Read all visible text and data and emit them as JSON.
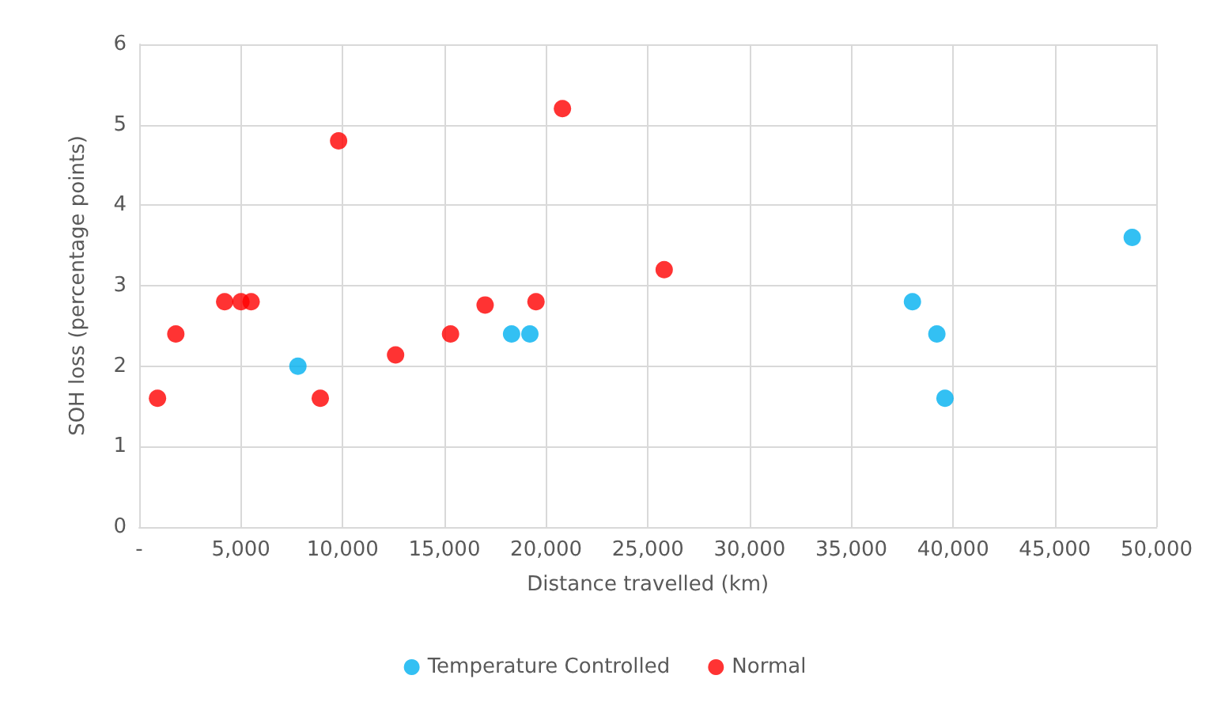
{
  "chart_data": {
    "type": "scatter",
    "xlabel": "Distance travelled (km)",
    "ylabel": "SOH loss (percentage points)",
    "xlim": [
      0,
      50000
    ],
    "xticks": [
      {
        "value": 0,
        "label": "-"
      },
      {
        "value": 5000,
        "label": "5,000"
      },
      {
        "value": 10000,
        "label": "10,000"
      },
      {
        "value": 15000,
        "label": "15,000"
      },
      {
        "value": 20000,
        "label": "20,000"
      },
      {
        "value": 25000,
        "label": "25,000"
      },
      {
        "value": 30000,
        "label": "30,000"
      },
      {
        "value": 35000,
        "label": "35,000"
      },
      {
        "value": 40000,
        "label": "40,000"
      },
      {
        "value": 45000,
        "label": "45,000"
      },
      {
        "value": 50000,
        "label": "50,000"
      }
    ],
    "ylim": [
      0,
      6
    ],
    "yticks": [
      0,
      1,
      2,
      3,
      4,
      5,
      6
    ],
    "grid": true,
    "legend": "bottom",
    "marker": "circle",
    "series": [
      {
        "name": "Temperature Controlled",
        "color": "#00b0f0",
        "x": [
          7800,
          18300,
          19200,
          38000,
          39200,
          39600,
          48800
        ],
        "values": [
          2.0,
          2.4,
          2.4,
          2.8,
          2.4,
          1.6,
          3.6
        ]
      },
      {
        "name": "Normal",
        "color": "#ff0000",
        "x": [
          900,
          1800,
          4200,
          5000,
          5500,
          8900,
          9800,
          12600,
          15300,
          17000,
          19500,
          20800,
          25800
        ],
        "values": [
          1.6,
          2.4,
          2.8,
          2.8,
          2.8,
          1.6,
          4.8,
          2.14,
          2.4,
          2.76,
          2.8,
          5.2,
          3.2
        ]
      }
    ]
  }
}
